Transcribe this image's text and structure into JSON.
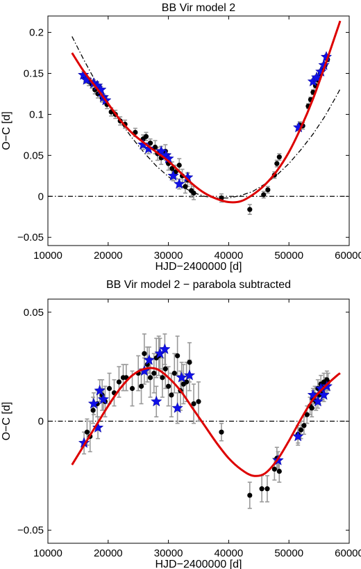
{
  "chart_data": [
    {
      "type": "scatter",
      "title": "BB Vir model 2",
      "xlabel": "HJD−2400000 [d]",
      "ylabel": "O−C [d]",
      "xlim": [
        10000,
        60000
      ],
      "ylim": [
        -0.06,
        0.22
      ],
      "xticks": [
        10000,
        20000,
        30000,
        40000,
        50000,
        60000
      ],
      "yticks": [
        -0.05,
        0,
        0.05,
        0.1,
        0.15,
        0.2
      ],
      "xtick_labels": [
        "10000",
        "20000",
        "30000",
        "40000",
        "50000",
        "60000"
      ],
      "ytick_labels": [
        "−0.05",
        "0",
        "0.05",
        "0.1",
        "0.15",
        "0.2"
      ],
      "grid": false,
      "zero_line_color": "#000000",
      "series": [
        {
          "marker": "dot",
          "color": "#000000",
          "errorbar_color": "#999999",
          "points": [
            [
              16200,
              0.145,
              0.005
            ],
            [
              16800,
              0.14,
              0.005
            ],
            [
              17300,
              0.137,
              0.005
            ],
            [
              17800,
              0.13,
              0.005
            ],
            [
              18300,
              0.125,
              0.005
            ],
            [
              19000,
              0.12,
              0.005
            ],
            [
              19800,
              0.112,
              0.005
            ],
            [
              20500,
              0.103,
              0.005
            ],
            [
              21200,
              0.1,
              0.005
            ],
            [
              22000,
              0.092,
              0.005
            ],
            [
              22800,
              0.088,
              0.005
            ],
            [
              24500,
              0.078,
              0.005
            ],
            [
              25800,
              0.07,
              0.005
            ],
            [
              26300,
              0.073,
              0.005
            ],
            [
              27000,
              0.065,
              0.005
            ],
            [
              27800,
              0.06,
              0.008
            ],
            [
              28200,
              0.052,
              0.008
            ],
            [
              28800,
              0.047,
              0.008
            ],
            [
              29500,
              0.055,
              0.008
            ],
            [
              30000,
              0.04,
              0.008
            ],
            [
              30600,
              0.034,
              0.008
            ],
            [
              31200,
              0.03,
              0.008
            ],
            [
              31800,
              0.038,
              0.008
            ],
            [
              32300,
              0.025,
              0.008
            ],
            [
              32800,
              0.012,
              0.008
            ],
            [
              33200,
              0.02,
              0.008
            ],
            [
              33800,
              0.007,
              0.008
            ],
            [
              34200,
              0.004,
              0.008
            ],
            [
              38800,
              -0.002,
              0.005
            ],
            [
              43500,
              -0.016,
              0.006
            ],
            [
              45800,
              0.002,
              0.004
            ],
            [
              46500,
              0.008,
              0.004
            ],
            [
              47600,
              0.026,
              0.004
            ],
            [
              48000,
              0.04,
              0.004
            ],
            [
              48400,
              0.048,
              0.004
            ],
            [
              51800,
              0.087,
              0.004
            ],
            [
              52300,
              0.086,
              0.004
            ],
            [
              53200,
              0.11,
              0.003
            ],
            [
              53600,
              0.118,
              0.003
            ],
            [
              54000,
              0.127,
              0.003
            ],
            [
              54400,
              0.135,
              0.003
            ],
            [
              54800,
              0.142,
              0.003
            ],
            [
              55200,
              0.15,
              0.003
            ],
            [
              55600,
              0.155,
              0.003
            ],
            [
              56000,
              0.16,
              0.003
            ],
            [
              56400,
              0.167,
              0.003
            ]
          ]
        },
        {
          "marker": "star",
          "color": "#1010e8",
          "errorbar_color": "#999999",
          "points": [
            [
              15900,
              0.148,
              0.004
            ],
            [
              16400,
              0.142,
              0.004
            ],
            [
              17600,
              0.138,
              0.004
            ],
            [
              18200,
              0.135,
              0.004
            ],
            [
              18800,
              0.13,
              0.004
            ],
            [
              19200,
              0.121,
              0.004
            ],
            [
              19600,
              0.117,
              0.004
            ],
            [
              25800,
              0.063,
              0.006
            ],
            [
              26700,
              0.058,
              0.006
            ],
            [
              28800,
              0.055,
              0.006
            ],
            [
              29600,
              0.05,
              0.006
            ],
            [
              30000,
              0.046,
              0.006
            ],
            [
              30800,
              0.025,
              0.006
            ],
            [
              31800,
              0.015,
              0.006
            ],
            [
              33200,
              0.023,
              0.006
            ],
            [
              51600,
              0.084,
              0.004
            ],
            [
              54000,
              0.14,
              0.003
            ],
            [
              54600,
              0.145,
              0.003
            ],
            [
              55300,
              0.152,
              0.003
            ],
            [
              55800,
              0.16,
              0.003
            ],
            [
              56200,
              0.17,
              0.003
            ]
          ]
        }
      ],
      "fit": {
        "color": "#dd0000",
        "style": "solid",
        "x": [
          14000,
          16000,
          18000,
          20000,
          22000,
          24000,
          26000,
          28000,
          30000,
          32000,
          34000,
          36000,
          38000,
          40000,
          42000,
          44000,
          46000,
          48000,
          50000,
          52000,
          54000,
          56000,
          58000,
          58500
        ],
        "y": [
          0.175,
          0.152,
          0.133,
          0.113,
          0.093,
          0.077,
          0.065,
          0.054,
          0.043,
          0.029,
          0.015,
          0.004,
          -0.003,
          -0.007,
          -0.006,
          0.002,
          0.014,
          0.031,
          0.054,
          0.084,
          0.119,
          0.16,
          0.203,
          0.214
        ]
      },
      "parabola": {
        "color": "#000000",
        "style": "dashdot",
        "x": [
          14000,
          16000,
          18000,
          20000,
          22000,
          24000,
          26000,
          28000,
          30000,
          32000,
          34000,
          36000,
          38000,
          40000,
          42000,
          44000,
          46000,
          48000,
          50000,
          52000,
          54000,
          56000,
          58000,
          58500
        ],
        "y": [
          0.195,
          0.166,
          0.139,
          0.114,
          0.091,
          0.071,
          0.053,
          0.037,
          0.024,
          0.013,
          0.005,
          0.0,
          -0.002,
          -0.002,
          0.001,
          0.006,
          0.015,
          0.026,
          0.04,
          0.057,
          0.076,
          0.098,
          0.124,
          0.131
        ]
      }
    },
    {
      "type": "scatter",
      "title": "BB Vir model 2 − parabola subtracted",
      "xlabel": "HJD−2400000 [d]",
      "ylabel": "O−C [d]",
      "xlim": [
        10000,
        60000
      ],
      "ylim": [
        -0.056,
        0.056
      ],
      "xticks": [
        10000,
        20000,
        30000,
        40000,
        50000,
        60000
      ],
      "yticks": [
        -0.05,
        0,
        0.05
      ],
      "xtick_labels": [
        "10000",
        "20000",
        "30000",
        "40000",
        "50000",
        "60000"
      ],
      "ytick_labels": [
        "−0.05",
        "0",
        "0.05"
      ],
      "grid": false,
      "zero_line_color": "#000000",
      "series": [
        {
          "marker": "dot",
          "color": "#000000",
          "errorbar_color": "#999999",
          "points": [
            [
              16500,
              -0.005,
              0.006
            ],
            [
              17000,
              -0.007,
              0.007
            ],
            [
              17500,
              0.005,
              0.006
            ],
            [
              18200,
              0.008,
              0.006
            ],
            [
              19000,
              0.012,
              0.007
            ],
            [
              19500,
              0.009,
              0.007
            ],
            [
              20200,
              0.015,
              0.007
            ],
            [
              21000,
              0.013,
              0.006
            ],
            [
              21800,
              0.018,
              0.007
            ],
            [
              22500,
              0.02,
              0.006
            ],
            [
              23000,
              0.02,
              0.006
            ],
            [
              24000,
              0.015,
              0.008
            ],
            [
              25000,
              0.022,
              0.008
            ],
            [
              25500,
              0.016,
              0.008
            ],
            [
              26000,
              0.031,
              0.009
            ],
            [
              26500,
              0.026,
              0.008
            ],
            [
              27000,
              0.02,
              0.009
            ],
            [
              27600,
              0.022,
              0.009
            ],
            [
              28000,
              0.029,
              0.009
            ],
            [
              28400,
              0.03,
              0.009
            ],
            [
              29000,
              0.02,
              0.009
            ],
            [
              29500,
              0.024,
              0.009
            ],
            [
              30000,
              0.016,
              0.009
            ],
            [
              30500,
              0.012,
              0.01
            ],
            [
              31000,
              0.022,
              0.009
            ],
            [
              31500,
              0.03,
              0.009
            ],
            [
              32000,
              0.014,
              0.009
            ],
            [
              32500,
              0.017,
              0.009
            ],
            [
              33000,
              0.018,
              0.009
            ],
            [
              33500,
              0.027,
              0.009
            ],
            [
              34200,
              0.008,
              0.009
            ],
            [
              35000,
              0.009,
              0.009
            ],
            [
              38800,
              -0.005,
              0.004
            ],
            [
              43500,
              -0.034,
              0.006
            ],
            [
              45500,
              -0.031,
              0.006
            ],
            [
              46400,
              -0.031,
              0.006
            ],
            [
              47600,
              -0.022,
              0.005
            ],
            [
              48000,
              -0.017,
              0.005
            ],
            [
              48400,
              -0.023,
              0.005
            ],
            [
              51500,
              -0.006,
              0.004
            ],
            [
              52000,
              -0.004,
              0.004
            ],
            [
              52500,
              -0.002,
              0.004
            ],
            [
              53000,
              0.003,
              0.004
            ],
            [
              53500,
              0.007,
              0.004
            ],
            [
              53800,
              0.006,
              0.004
            ],
            [
              54000,
              0.01,
              0.004
            ],
            [
              54300,
              0.012,
              0.004
            ],
            [
              54500,
              0.009,
              0.004
            ],
            [
              54800,
              0.015,
              0.004
            ],
            [
              55000,
              0.012,
              0.004
            ],
            [
              55300,
              0.017,
              0.004
            ],
            [
              55500,
              0.014,
              0.004
            ],
            [
              55800,
              0.018,
              0.004
            ],
            [
              56000,
              0.016,
              0.004
            ],
            [
              56300,
              0.019,
              0.004
            ],
            [
              56500,
              0.018,
              0.004
            ]
          ]
        },
        {
          "marker": "star",
          "color": "#1010e8",
          "errorbar_color": "#999999",
          "points": [
            [
              16000,
              -0.01,
              0.005
            ],
            [
              17600,
              0.008,
              0.005
            ],
            [
              18300,
              -0.003,
              0.005
            ],
            [
              18600,
              0.014,
              0.005
            ],
            [
              19200,
              0.01,
              0.005
            ],
            [
              26000,
              0.023,
              0.006
            ],
            [
              26800,
              0.028,
              0.006
            ],
            [
              28000,
              0.009,
              0.007
            ],
            [
              28600,
              0.031,
              0.007
            ],
            [
              29400,
              0.033,
              0.007
            ],
            [
              31500,
              0.006,
              0.007
            ],
            [
              32200,
              0.02,
              0.007
            ],
            [
              33500,
              0.021,
              0.007
            ],
            [
              48200,
              -0.018,
              0.004
            ],
            [
              51500,
              -0.007,
              0.004
            ],
            [
              54000,
              0.012,
              0.003
            ],
            [
              54800,
              0.009,
              0.003
            ],
            [
              55300,
              0.015,
              0.003
            ],
            [
              55800,
              0.012,
              0.003
            ],
            [
              56300,
              0.016,
              0.003
            ]
          ]
        }
      ],
      "fit": {
        "color": "#dd0000",
        "style": "solid",
        "x": [
          14000,
          16000,
          18000,
          20000,
          22000,
          24000,
          26000,
          28000,
          30000,
          32000,
          34000,
          36000,
          38000,
          40000,
          42000,
          44000,
          46000,
          48000,
          50000,
          52000,
          54000,
          56000,
          58000,
          58500
        ],
        "y": [
          -0.02,
          -0.011,
          -0.002,
          0.007,
          0.015,
          0.021,
          0.024,
          0.024,
          0.02,
          0.014,
          0.006,
          -0.002,
          -0.01,
          -0.017,
          -0.022,
          -0.025,
          -0.024,
          -0.018,
          -0.009,
          0.001,
          0.01,
          0.016,
          0.021,
          0.022
        ]
      }
    }
  ]
}
